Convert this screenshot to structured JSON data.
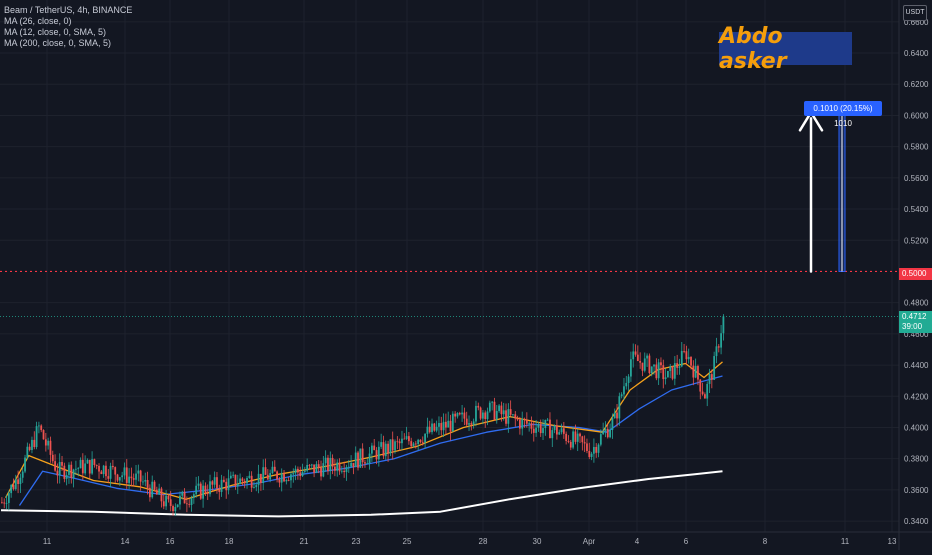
{
  "legend": {
    "symbol": "Beam / TetherUS, 4h, BINANCE",
    "ma1": "MA (26, close, 0)",
    "ma2": "MA (12, close, 0, SMA, 5)",
    "ma3": "MA (200, close, 0, SMA, 5)"
  },
  "banner": {
    "text": "Abdo asker"
  },
  "measure_label": "0.1010 (20.15%) 1010",
  "currency": "USDT",
  "price_axis": {
    "ticks": [
      "0.6600",
      "0.6400",
      "0.6200",
      "0.6000",
      "0.5800",
      "0.5600",
      "0.5400",
      "0.5200",
      "0.4800",
      "0.4600",
      "0.4400",
      "0.4200",
      "0.4000",
      "0.3800",
      "0.3600",
      "0.3400"
    ],
    "ymin": 0.333,
    "ymax": 0.674
  },
  "time_axis": {
    "ticks": [
      "11",
      "14",
      "16",
      "18",
      "21",
      "23",
      "25",
      "28",
      "30",
      "Apr",
      "4",
      "6",
      "8",
      "11",
      "13"
    ]
  },
  "levels": {
    "target": {
      "price": 0.5,
      "label": "0.5000"
    },
    "last": {
      "price": 0.4712,
      "label": "0.4712",
      "countdown": "39:00"
    }
  },
  "colors": {
    "background": "#131722",
    "up": "#26a69a",
    "down": "#ef5350",
    "ma_fast": "#f7a21b",
    "ma_mid": "#2f6cf0",
    "ma_slow": "#ffffff",
    "target_line": "#f23645",
    "last_price": "#22ab94",
    "measure": "#2962ff",
    "banner_bg": "#1e3a8a",
    "banner_text": "#f59e0b"
  },
  "chart_data": {
    "type": "candlestick",
    "x_labels": [
      "11",
      "14",
      "16",
      "18",
      "21",
      "23",
      "25",
      "28",
      "30",
      "Apr",
      "4",
      "6",
      "8",
      "11",
      "13"
    ],
    "ylim": [
      0.333,
      0.674
    ],
    "anchors": [
      [
        0,
        0.352
      ],
      [
        6,
        0.366
      ],
      [
        12,
        0.385
      ],
      [
        16,
        0.4
      ],
      [
        24,
        0.372
      ],
      [
        40,
        0.376
      ],
      [
        60,
        0.366
      ],
      [
        72,
        0.35
      ],
      [
        90,
        0.362
      ],
      [
        110,
        0.368
      ],
      [
        130,
        0.372
      ],
      [
        150,
        0.378
      ],
      [
        170,
        0.388
      ],
      [
        190,
        0.4
      ],
      [
        210,
        0.412
      ],
      [
        225,
        0.403
      ],
      [
        240,
        0.398
      ],
      [
        255,
        0.385
      ],
      [
        258,
        0.392
      ],
      [
        265,
        0.405
      ],
      [
        272,
        0.444
      ],
      [
        280,
        0.44
      ],
      [
        288,
        0.432
      ],
      [
        296,
        0.448
      ],
      [
        304,
        0.421
      ],
      [
        308,
        0.44
      ],
      [
        312,
        0.471
      ]
    ],
    "ma_fast": [
      [
        2,
        0.355
      ],
      [
        12,
        0.382
      ],
      [
        24,
        0.375
      ],
      [
        40,
        0.366
      ],
      [
        60,
        0.362
      ],
      [
        80,
        0.354
      ],
      [
        100,
        0.363
      ],
      [
        120,
        0.37
      ],
      [
        140,
        0.375
      ],
      [
        160,
        0.381
      ],
      [
        180,
        0.388
      ],
      [
        200,
        0.4
      ],
      [
        220,
        0.407
      ],
      [
        240,
        0.401
      ],
      [
        260,
        0.397
      ],
      [
        272,
        0.424
      ],
      [
        284,
        0.437
      ],
      [
        296,
        0.441
      ],
      [
        304,
        0.432
      ],
      [
        312,
        0.442
      ]
    ],
    "ma_mid": [
      [
        8,
        0.35
      ],
      [
        18,
        0.372
      ],
      [
        30,
        0.368
      ],
      [
        50,
        0.361
      ],
      [
        70,
        0.357
      ],
      [
        90,
        0.36
      ],
      [
        110,
        0.364
      ],
      [
        130,
        0.37
      ],
      [
        150,
        0.374
      ],
      [
        170,
        0.38
      ],
      [
        190,
        0.39
      ],
      [
        210,
        0.397
      ],
      [
        230,
        0.402
      ],
      [
        250,
        0.4
      ],
      [
        262,
        0.397
      ],
      [
        276,
        0.412
      ],
      [
        290,
        0.424
      ],
      [
        302,
        0.429
      ],
      [
        312,
        0.433
      ]
    ],
    "ma_slow": [
      [
        0,
        0.347
      ],
      [
        40,
        0.346
      ],
      [
        80,
        0.344
      ],
      [
        120,
        0.343
      ],
      [
        160,
        0.344
      ],
      [
        190,
        0.346
      ],
      [
        220,
        0.354
      ],
      [
        250,
        0.361
      ],
      [
        280,
        0.367
      ],
      [
        300,
        0.37
      ],
      [
        312,
        0.372
      ]
    ]
  }
}
